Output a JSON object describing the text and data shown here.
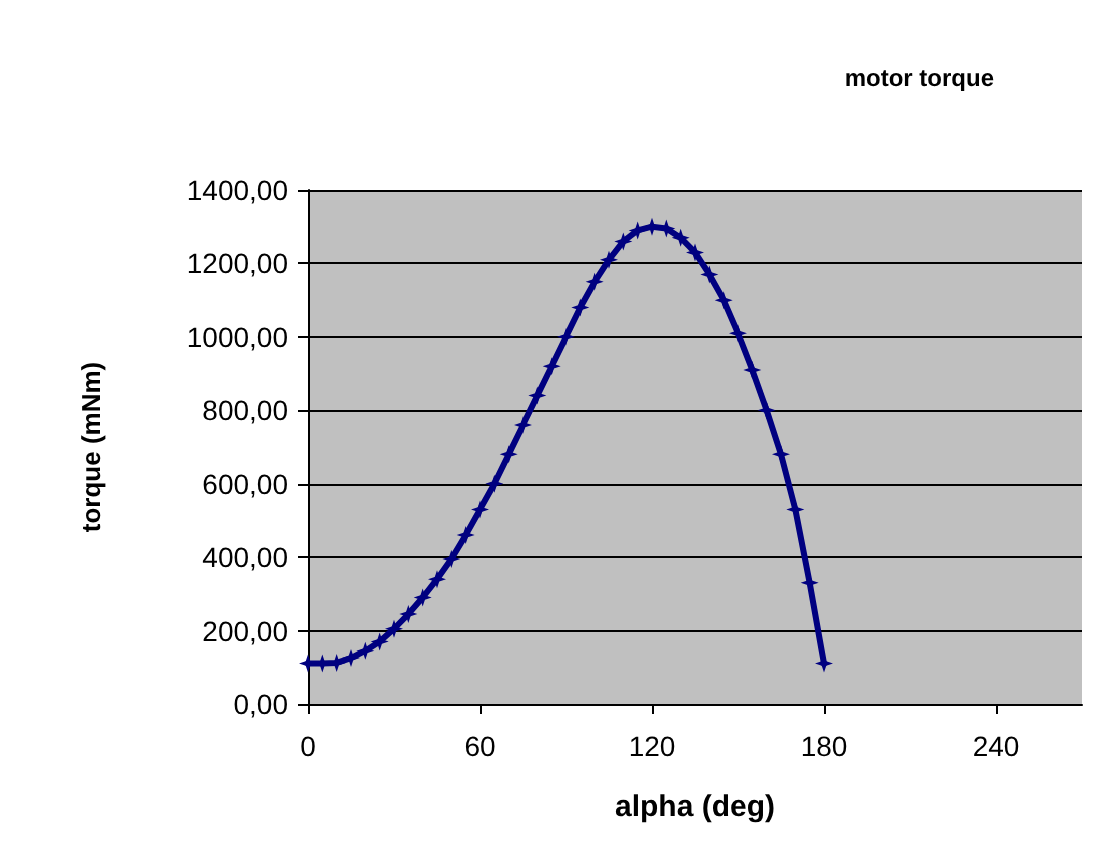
{
  "chart_data": {
    "type": "line",
    "title": "motor torque",
    "xlabel": "alpha (deg)",
    "ylabel": "torque (mNm)",
    "x": [
      0,
      5,
      10,
      15,
      20,
      25,
      30,
      35,
      40,
      45,
      50,
      55,
      60,
      65,
      70,
      75,
      80,
      85,
      90,
      95,
      100,
      105,
      110,
      115,
      120,
      125,
      130,
      135,
      140,
      145,
      150,
      155,
      160,
      165,
      170,
      175,
      180
    ],
    "series": [
      {
        "color": "#000080",
        "values": [
          110,
          110,
          112,
          125,
          145,
          170,
          205,
          245,
          290,
          340,
          395,
          460,
          530,
          600,
          680,
          760,
          840,
          920,
          1000,
          1080,
          1150,
          1210,
          1260,
          1290,
          1300,
          1295,
          1270,
          1230,
          1170,
          1100,
          1010,
          910,
          800,
          680,
          530,
          330,
          110
        ]
      }
    ],
    "xlim": [
      0,
      270
    ],
    "xticks": [
      0,
      60,
      120,
      180,
      240
    ],
    "ylim": [
      0,
      1400
    ],
    "yticks": [
      {
        "value": 0,
        "label": "0,00"
      },
      {
        "value": 200,
        "label": "200,00"
      },
      {
        "value": 400,
        "label": "400,00"
      },
      {
        "value": 600,
        "label": "600,00"
      },
      {
        "value": 800,
        "label": "800,00"
      },
      {
        "value": 1000,
        "label": "1000,00"
      },
      {
        "value": 1200,
        "label": "1200,00"
      },
      {
        "value": 1400,
        "label": "1400,00"
      }
    ],
    "grid": "y",
    "marker": "star",
    "line_style": "solid"
  }
}
